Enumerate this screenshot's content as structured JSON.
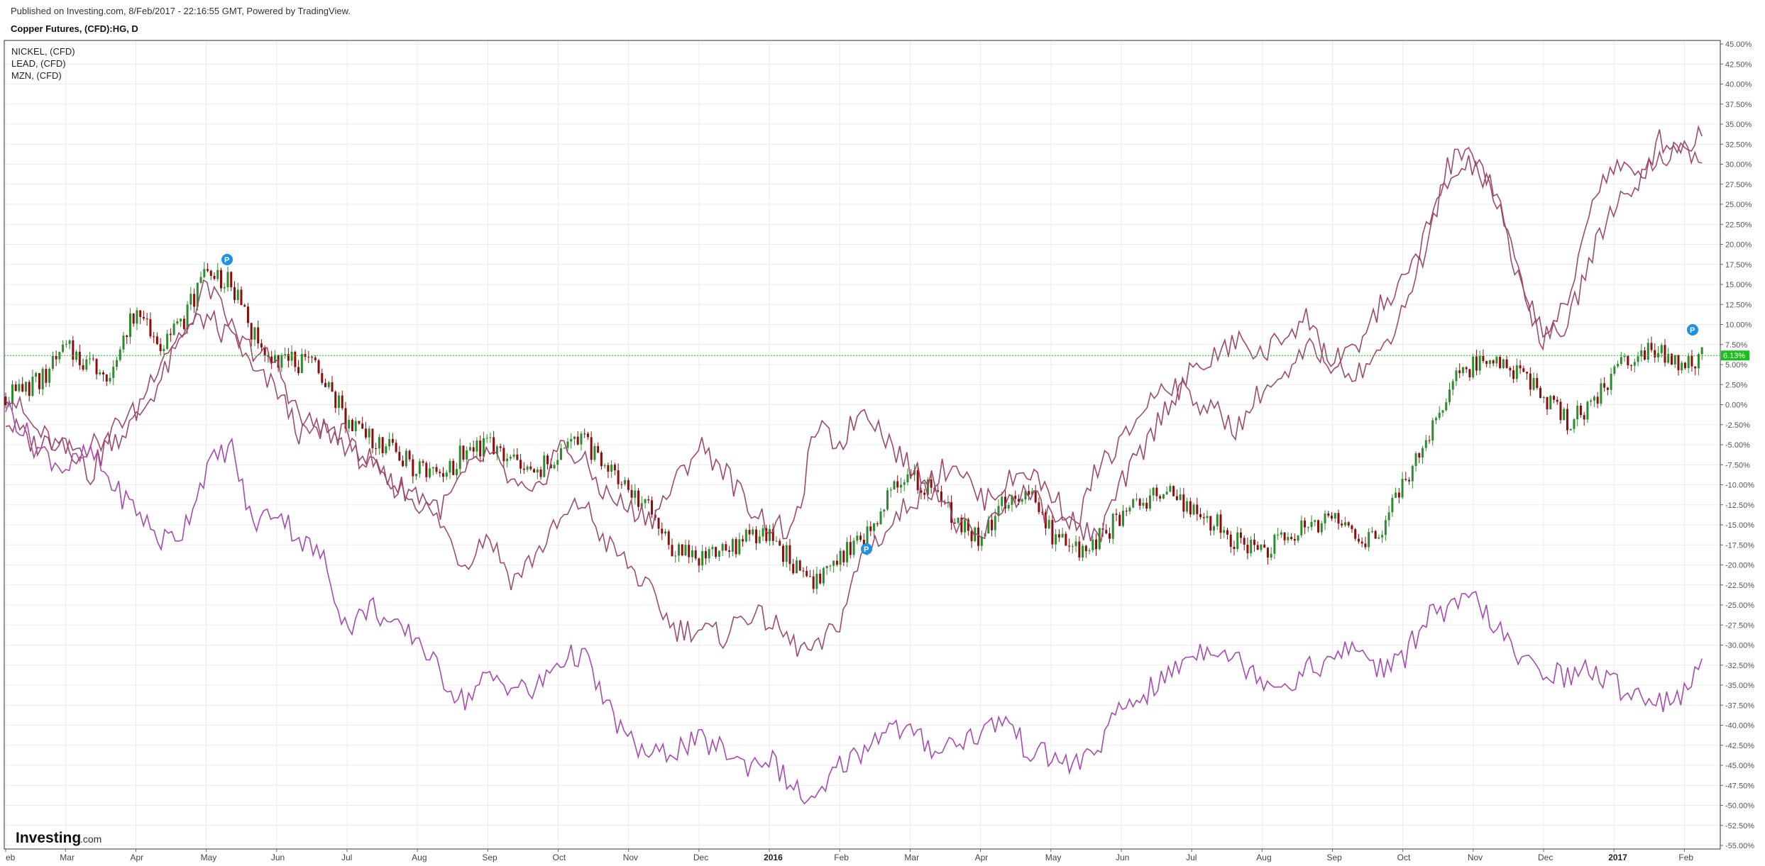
{
  "header": {
    "published": "Published on Investing.com, 8/Feb/2017 - 22:16:55 GMT, Powered by TradingView.",
    "symbol": "Copper Futures, (CFD):HG, D"
  },
  "legend": [
    "NICKEL,  (CFD)",
    "LEAD,  (CFD)",
    "MZN,  (CFD)"
  ],
  "logo": {
    "name": "Investing",
    "suffix": ".com"
  },
  "last_value_label": "6.13%",
  "colors": {
    "copper_up": "#2e8b2e",
    "copper_down": "#8b0e0e",
    "nickel": "#9e4d6c",
    "lead": "#a0486a",
    "mzn": "#a64cb0",
    "last_label_bg": "#19c219",
    "grid": "#ececec",
    "pin": "#1e90e6"
  },
  "chart_data": {
    "type": "line",
    "title": "Copper Futures, (CFD):HG, D",
    "ylim": [
      -55,
      45
    ],
    "y_ticks": [
      "45.00%",
      "42.50%",
      "40.00%",
      "37.50%",
      "35.00%",
      "32.50%",
      "30.00%",
      "27.50%",
      "25.00%",
      "22.50%",
      "20.00%",
      "17.50%",
      "15.00%",
      "12.50%",
      "10.00%",
      "7.50%",
      "5.00%",
      "2.50%",
      "0.00%",
      "-2.50%",
      "-5.00%",
      "-7.50%",
      "-10.00%",
      "-12.50%",
      "-15.00%",
      "-17.50%",
      "-20.00%",
      "-22.50%",
      "-25.00%",
      "-27.50%",
      "-30.00%",
      "-32.50%",
      "-35.00%",
      "-37.50%",
      "-40.00%",
      "-42.50%",
      "-45.00%",
      "-47.50%",
      "-50.00%",
      "-52.50%",
      "-55.00%"
    ],
    "x_ticks": [
      {
        "label": "eb",
        "bold": false
      },
      {
        "label": "Mar",
        "bold": false
      },
      {
        "label": "Apr",
        "bold": false
      },
      {
        "label": "May",
        "bold": false
      },
      {
        "label": "Jun",
        "bold": false
      },
      {
        "label": "Jul",
        "bold": false
      },
      {
        "label": "Aug",
        "bold": false
      },
      {
        "label": "Sep",
        "bold": false
      },
      {
        "label": "Oct",
        "bold": false
      },
      {
        "label": "Nov",
        "bold": false
      },
      {
        "label": "Dec",
        "bold": false
      },
      {
        "label": "2016",
        "bold": true
      },
      {
        "label": "Feb",
        "bold": false
      },
      {
        "label": "Mar",
        "bold": false
      },
      {
        "label": "Apr",
        "bold": false
      },
      {
        "label": "May",
        "bold": false
      },
      {
        "label": "Jun",
        "bold": false
      },
      {
        "label": "Jul",
        "bold": false
      },
      {
        "label": "Aug",
        "bold": false
      },
      {
        "label": "Sep",
        "bold": false
      },
      {
        "label": "Oct",
        "bold": false
      },
      {
        "label": "Nov",
        "bold": false
      },
      {
        "label": "Dec",
        "bold": false
      },
      {
        "label": "2017",
        "bold": true
      },
      {
        "label": "Feb",
        "bold": false
      }
    ],
    "x_tick_month_index": [
      0,
      0.85,
      1.85,
      2.85,
      3.85,
      4.85,
      5.85,
      6.85,
      7.85,
      8.85,
      9.85,
      10.85,
      11.85,
      12.85,
      13.85,
      14.85,
      15.85,
      16.85,
      17.85,
      18.85,
      19.85,
      20.85,
      21.85,
      22.85,
      23.85
    ],
    "x_range_months": [
      0,
      24.3
    ],
    "last_value": 6.13,
    "series": [
      {
        "name": "Copper Futures, (CFD):HG, D",
        "style": "candles",
        "x": [
          0,
          0.5,
          0.85,
          1.2,
          1.5,
          1.85,
          2.2,
          2.5,
          2.85,
          3.2,
          3.5,
          3.85,
          4.2,
          4.5,
          4.85,
          5.2,
          5.5,
          5.85,
          6.2,
          6.5,
          6.85,
          7.2,
          7.5,
          7.85,
          8.2,
          8.5,
          8.85,
          9.2,
          9.5,
          9.85,
          10.2,
          10.5,
          10.85,
          11.2,
          11.5,
          11.85,
          12.2,
          12.5,
          12.85,
          13.2,
          13.5,
          13.85,
          14.2,
          14.5,
          14.85,
          15.2,
          15.5,
          15.85,
          16.2,
          16.5,
          16.85,
          17.2,
          17.5,
          17.85,
          18.2,
          18.5,
          18.85,
          19.2,
          19.5,
          19.85,
          20.2,
          20.5,
          20.85,
          21.2,
          21.5,
          21.85,
          22.2,
          22.5,
          22.85,
          23.2,
          23.5,
          23.85,
          24.1
        ],
        "values": [
          1,
          3,
          7,
          5,
          4,
          12,
          8,
          10,
          17,
          15,
          9,
          6,
          5,
          4,
          -2,
          -4,
          -6,
          -8,
          -9,
          -6,
          -5,
          -7,
          -9,
          -6,
          -4,
          -8,
          -10,
          -14,
          -18,
          -19,
          -18,
          -17,
          -16,
          -20,
          -22,
          -19,
          -17,
          -12,
          -9,
          -11,
          -14,
          -17,
          -12,
          -11,
          -16,
          -18,
          -17,
          -14,
          -12,
          -11,
          -13,
          -15,
          -17,
          -18,
          -17,
          -15,
          -14,
          -16,
          -17,
          -10,
          -4,
          2,
          5,
          6,
          4,
          1,
          -2,
          0,
          4,
          7,
          7,
          5,
          6
        ]
      },
      {
        "name": "NICKEL,  (CFD)",
        "style": "line",
        "x": [
          0,
          0.4,
          0.85,
          1.2,
          1.6,
          1.85,
          2.2,
          2.5,
          2.85,
          3.2,
          3.5,
          3.85,
          4.2,
          4.5,
          4.85,
          5.2,
          5.5,
          5.85,
          6.2,
          6.5,
          6.85,
          7.2,
          7.5,
          7.85,
          8.2,
          8.5,
          8.85,
          9.2,
          9.5,
          9.85,
          10.2,
          10.5,
          10.85,
          11.2,
          11.5,
          11.85,
          12.2,
          12.5,
          12.85,
          13.2,
          13.5,
          13.85,
          14.2,
          14.5,
          14.85,
          15.2,
          15.5,
          15.85,
          16.2,
          16.5,
          16.85,
          17.2,
          17.5,
          17.85,
          18.2,
          18.5,
          18.85,
          19.2,
          19.5,
          19.85,
          20.2,
          20.5,
          20.85,
          21.2,
          21.5,
          21.85,
          22.2,
          22.5,
          22.85,
          23.2,
          23.5,
          23.85,
          24.1
        ],
        "values": [
          2,
          -3,
          -6,
          -5,
          -4,
          -2,
          3,
          8,
          15,
          10,
          4,
          2,
          -4,
          -3,
          -5,
          -8,
          -10,
          -12,
          -15,
          -20,
          -16,
          -22,
          -19,
          -15,
          -12,
          -17,
          -20,
          -24,
          -28,
          -28,
          -29,
          -26,
          -27,
          -30,
          -31,
          -27,
          -18,
          -16,
          -12,
          -10,
          -15,
          -17,
          -12,
          -11,
          -14,
          -16,
          -8,
          -5,
          0,
          3,
          1,
          -1,
          -3,
          2,
          3,
          7,
          6,
          4,
          6,
          12,
          20,
          30,
          32,
          26,
          15,
          8,
          10,
          18,
          25,
          28,
          31,
          32,
          30
        ]
      },
      {
        "name": "LEAD,  (CFD)",
        "style": "line",
        "x": [
          0,
          0.4,
          0.85,
          1.2,
          1.6,
          1.85,
          2.2,
          2.5,
          2.85,
          3.2,
          3.5,
          3.85,
          4.2,
          4.5,
          4.85,
          5.2,
          5.5,
          5.85,
          6.2,
          6.5,
          6.85,
          7.2,
          7.5,
          7.85,
          8.2,
          8.5,
          8.85,
          9.2,
          9.5,
          9.85,
          10.2,
          10.5,
          10.85,
          11.2,
          11.5,
          11.85,
          12.2,
          12.5,
          12.85,
          13.2,
          13.5,
          13.85,
          14.2,
          14.5,
          14.85,
          15.2,
          15.5,
          15.85,
          16.2,
          16.5,
          16.85,
          17.2,
          17.5,
          17.85,
          18.2,
          18.5,
          18.85,
          19.2,
          19.5,
          19.85,
          20.2,
          20.5,
          20.85,
          21.2,
          21.5,
          21.85,
          22.2,
          22.5,
          22.85,
          23.2,
          23.5,
          23.85,
          24.1
        ],
        "values": [
          -2,
          -5,
          -4,
          -9,
          -2,
          -1,
          6,
          9,
          11,
          8,
          7,
          5,
          -2,
          -3,
          -4,
          -7,
          -10,
          -11,
          -13,
          -9,
          -6,
          -10,
          -12,
          -5,
          -7,
          -11,
          -13,
          -14,
          -10,
          -5,
          -8,
          -12,
          -15,
          -16,
          -3,
          -5,
          0,
          -4,
          -8,
          -9,
          -7,
          -12,
          -10,
          -8,
          -11,
          -15,
          -17,
          -10,
          -5,
          0,
          4,
          6,
          8,
          6,
          9,
          11,
          4,
          7,
          12,
          15,
          22,
          28,
          30,
          25,
          16,
          9,
          12,
          25,
          30,
          28,
          33,
          32,
          34
        ]
      },
      {
        "name": "MZN,  (CFD)",
        "style": "line",
        "x": [
          0,
          0.4,
          0.85,
          1.2,
          1.6,
          1.85,
          2.2,
          2.5,
          2.85,
          3.2,
          3.5,
          3.85,
          4.2,
          4.5,
          4.85,
          5.2,
          5.5,
          5.85,
          6.2,
          6.5,
          6.85,
          7.2,
          7.5,
          7.85,
          8.2,
          8.5,
          8.85,
          9.2,
          9.5,
          9.85,
          10.2,
          10.5,
          10.85,
          11.2,
          11.5,
          11.85,
          12.2,
          12.5,
          12.85,
          13.2,
          13.5,
          13.85,
          14.2,
          14.5,
          14.85,
          15.2,
          15.5,
          15.85,
          16.2,
          16.5,
          16.85,
          17.2,
          17.5,
          17.85,
          18.2,
          18.5,
          18.85,
          19.2,
          19.5,
          19.85,
          20.2,
          20.5,
          20.85,
          21.2,
          21.5,
          21.85,
          22.2,
          22.5,
          22.85,
          23.2,
          23.5,
          23.85,
          24.1
        ],
        "values": [
          0,
          -5,
          -8,
          -6,
          -11,
          -13,
          -17,
          -16,
          -8,
          -5,
          -15,
          -13,
          -17,
          -19,
          -28,
          -25,
          -28,
          -29,
          -34,
          -37,
          -34,
          -35,
          -36,
          -32,
          -31,
          -37,
          -42,
          -44,
          -43,
          -42,
          -43,
          -45,
          -44,
          -48,
          -50,
          -45,
          -43,
          -40,
          -41,
          -43,
          -42,
          -41,
          -39,
          -43,
          -44,
          -45,
          -43,
          -38,
          -36,
          -34,
          -31,
          -30,
          -32,
          -34,
          -35,
          -33,
          -32,
          -30,
          -33,
          -32,
          -26,
          -26,
          -24,
          -28,
          -32,
          -33,
          -34,
          -33,
          -35,
          -36,
          -37,
          -36,
          -33
        ]
      }
    ]
  }
}
